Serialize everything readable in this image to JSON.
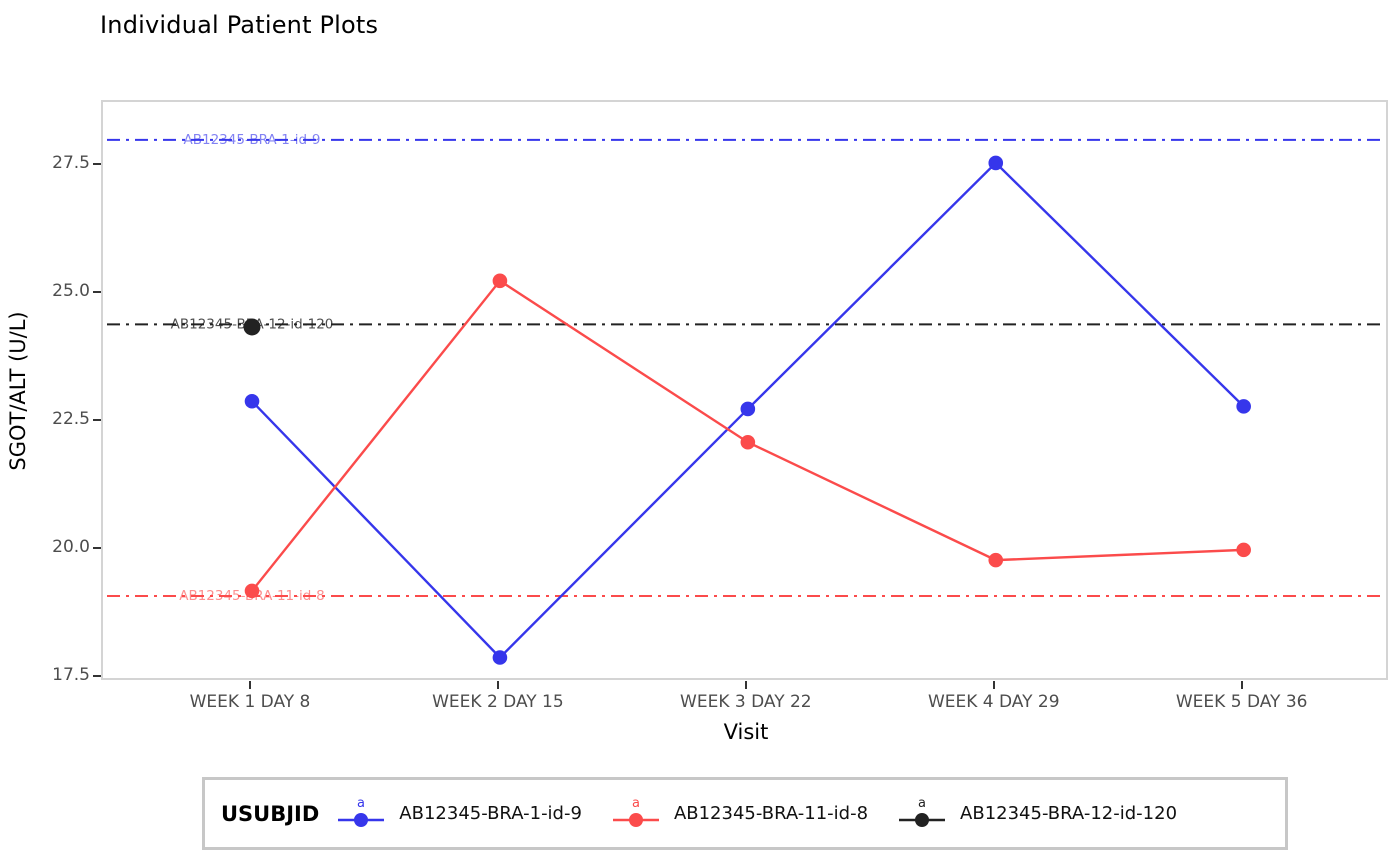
{
  "page": {
    "title": "Individual Patient Plots"
  },
  "chart_data": {
    "type": "line",
    "title": "Individual Patient Plots",
    "xlabel": "Visit",
    "ylabel": "SGOT/ALT (U/L)",
    "categories": [
      "WEEK 1 DAY 8",
      "WEEK 2 DAY 15",
      "WEEK 3 DAY 22",
      "WEEK 4 DAY 29",
      "WEEK 5 DAY 36"
    ],
    "y_ticks": [
      27.5,
      25.0,
      22.5,
      20.0,
      17.5
    ],
    "y_tick_labels": [
      "27.5",
      "25.0",
      "22.5",
      "20.0",
      "17.5"
    ],
    "ylim": [
      17.4,
      28.7
    ],
    "grid": false,
    "legend": {
      "title": "USUBJID",
      "position": "bottom",
      "key_glyph": "a"
    },
    "colors": {
      "blue": "#3636eb",
      "red": "#fb4b4b",
      "black": "#222222"
    },
    "series": [
      {
        "name": "AB12345-BRA-1-id-9",
        "color": "#3636eb",
        "values": [
          22.9,
          17.9,
          22.75,
          27.55,
          22.8
        ],
        "ref_line": {
          "value": 28.0,
          "label": "AB12345-BRA-1-id-9"
        }
      },
      {
        "name": "AB12345-BRA-11-id-8",
        "color": "#fb4b4b",
        "values": [
          19.2,
          25.25,
          22.1,
          19.8,
          20.0
        ],
        "ref_line": {
          "value": 19.1,
          "label": "AB12345-BRA-11-id-8"
        }
      },
      {
        "name": "AB12345-BRA-12-id-120",
        "color": "#222222",
        "values": [
          24.35,
          null,
          null,
          null,
          null
        ],
        "ref_line": {
          "value": 24.4,
          "label": "AB12345-BRA-12-id-120"
        }
      }
    ]
  }
}
